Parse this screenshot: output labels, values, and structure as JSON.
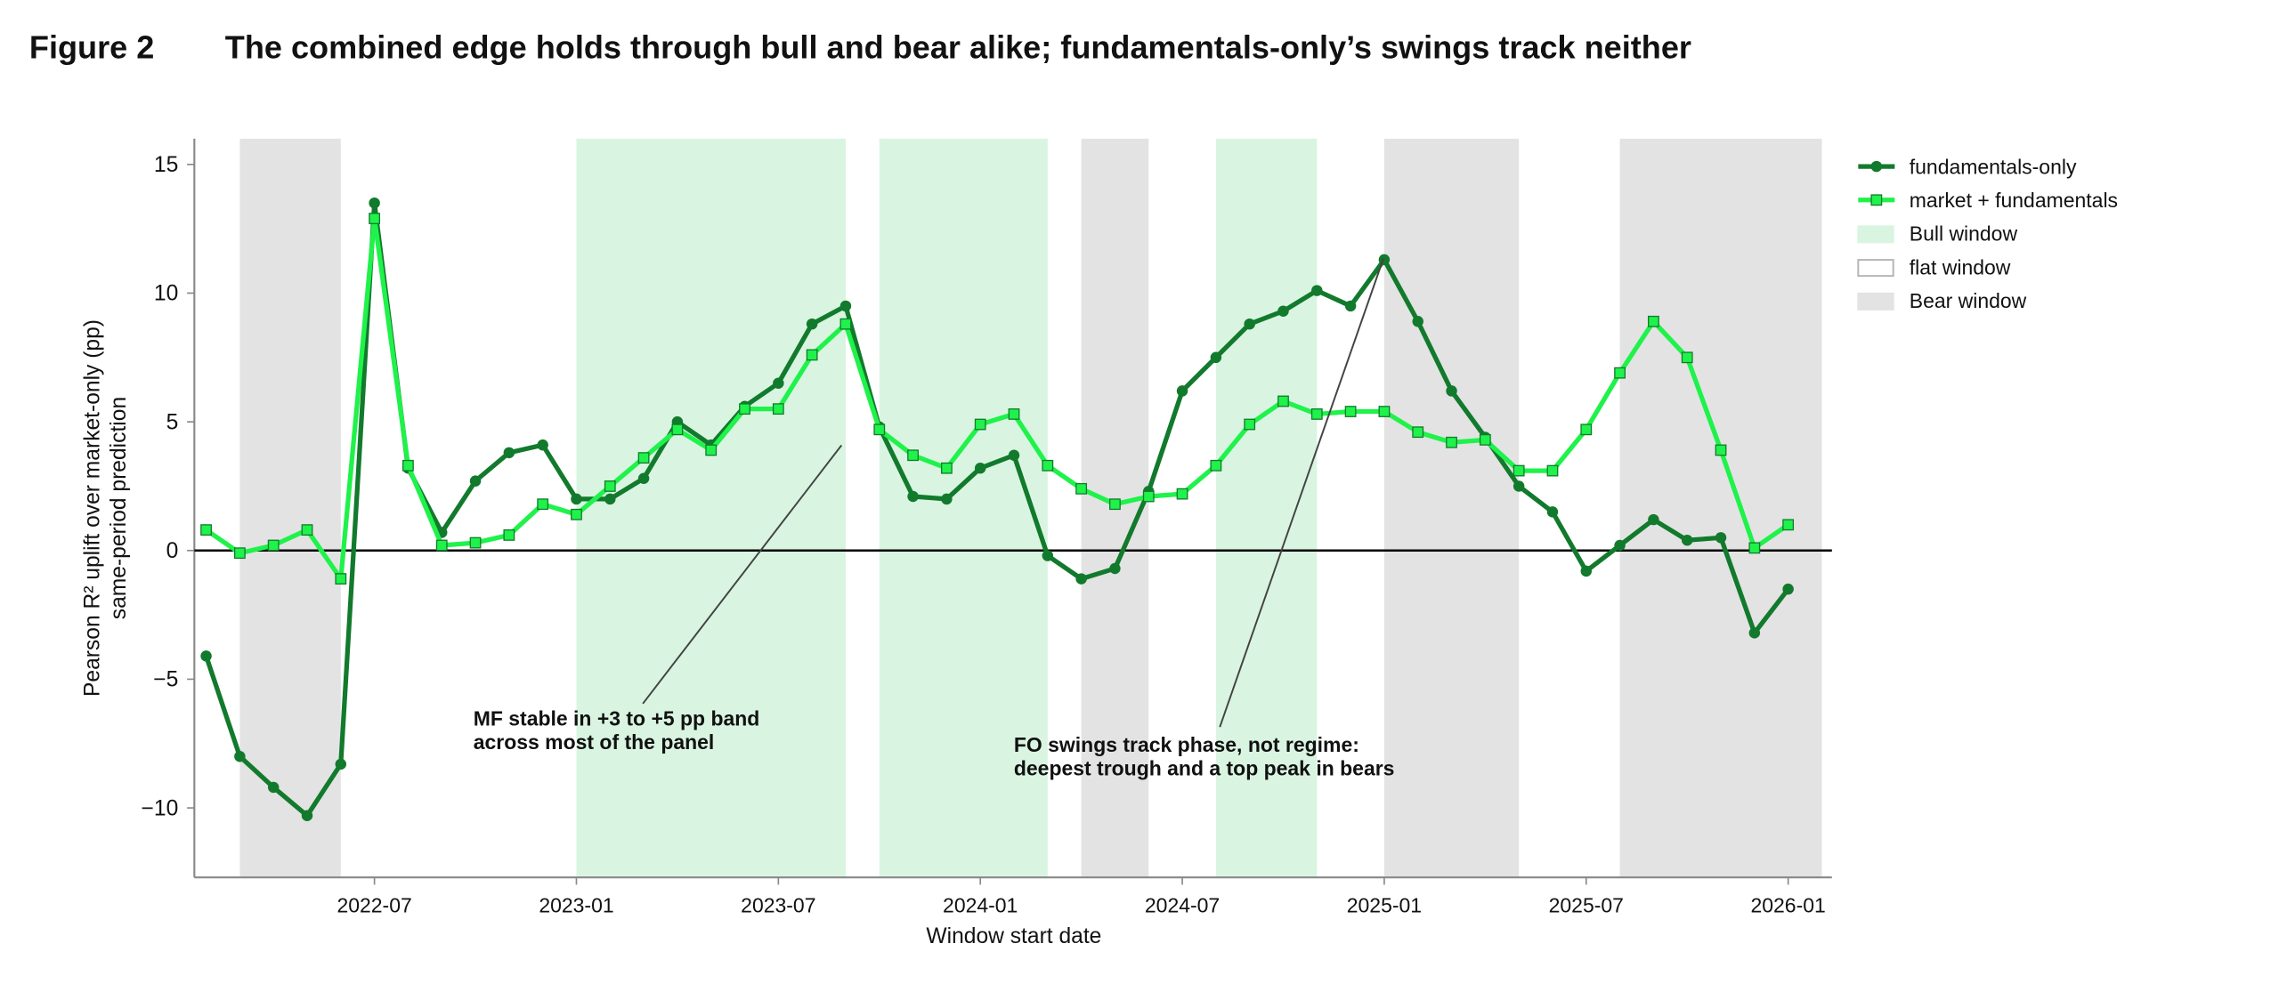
{
  "figure_label": "Figure 2",
  "chart_data": {
    "type": "line",
    "title": "The combined edge holds through bull and bear alike; fundamentals-only’s swings track neither",
    "xlabel": "Window start date",
    "ylabel": [
      "Pearson R² uplift over market-only (pp)",
      "same-period prediction"
    ],
    "x": [
      "2022-02",
      "2022-03",
      "2022-04",
      "2022-05",
      "2022-06",
      "2022-07",
      "2022-08",
      "2022-09",
      "2022-10",
      "2022-11",
      "2022-12",
      "2023-01",
      "2023-02",
      "2023-03",
      "2023-04",
      "2023-05",
      "2023-06",
      "2023-07",
      "2023-08",
      "2023-09",
      "2023-10",
      "2023-11",
      "2023-12",
      "2024-01",
      "2024-02",
      "2024-03",
      "2024-04",
      "2024-05",
      "2024-06",
      "2024-07",
      "2024-08",
      "2024-09",
      "2024-10",
      "2024-11",
      "2024-12",
      "2025-01",
      "2025-02",
      "2025-03",
      "2025-04",
      "2025-05",
      "2025-06",
      "2025-07",
      "2025-08",
      "2025-09",
      "2025-10",
      "2025-11",
      "2025-12",
      "2026-01"
    ],
    "xticks": [
      "2022-07",
      "2023-01",
      "2023-07",
      "2024-01",
      "2024-07",
      "2025-01",
      "2025-07",
      "2026-01"
    ],
    "ylim": [
      -12.7,
      16
    ],
    "yticks": [
      {
        "value": -10,
        "label": "−10"
      },
      {
        "value": -5,
        "label": "−5"
      },
      0,
      5,
      10,
      15
    ],
    "reference_line": 0,
    "grid": false,
    "legend": "upper right outside",
    "series": [
      {
        "name": "fundamentals-only",
        "color": "#127a2c",
        "marker": "circle",
        "values": [
          -4.1,
          -8.0,
          -9.2,
          -10.3,
          -8.3,
          13.5,
          3.2,
          0.7,
          2.7,
          3.8,
          4.1,
          2.0,
          2.0,
          2.8,
          5.0,
          4.1,
          5.6,
          6.5,
          8.8,
          9.5,
          4.8,
          2.1,
          2.0,
          3.2,
          3.7,
          -0.2,
          -1.1,
          -0.7,
          2.3,
          6.2,
          7.5,
          8.8,
          9.3,
          10.1,
          9.5,
          11.3,
          8.9,
          6.2,
          4.4,
          2.5,
          1.5,
          -0.8,
          0.2,
          1.2,
          0.4,
          0.5,
          -3.2,
          -1.5
        ]
      },
      {
        "name": "market + fundamentals",
        "color": "#1ff24a",
        "marker": "square",
        "values": [
          0.8,
          -0.1,
          0.2,
          0.8,
          -1.1,
          12.9,
          3.3,
          0.2,
          0.3,
          0.6,
          1.8,
          1.4,
          2.5,
          3.6,
          4.7,
          3.9,
          5.5,
          5.5,
          7.6,
          8.8,
          4.7,
          3.7,
          3.2,
          4.9,
          5.3,
          3.3,
          2.4,
          1.8,
          2.1,
          2.2,
          3.3,
          4.9,
          5.8,
          5.3,
          5.4,
          5.4,
          4.6,
          4.2,
          4.3,
          3.1,
          3.1,
          4.7,
          6.9,
          8.9,
          7.5,
          3.9,
          0.1,
          1.0
        ]
      }
    ],
    "regimes": [
      {
        "name": "Bull window",
        "color": "#d9f5e1",
        "border": "#d9f5e1"
      },
      {
        "name": "flat window",
        "color": "#ffffff",
        "border": "#b5b5b5"
      },
      {
        "name": "Bear window",
        "color": "#e3e3e3",
        "border": "#e3e3e3"
      }
    ],
    "windows": [
      {
        "regime": 2,
        "start": "2022-03",
        "end": "2022-06"
      },
      {
        "regime": 0,
        "start": "2023-01",
        "end": "2023-09"
      },
      {
        "regime": 0,
        "start": "2023-10",
        "end": "2024-03"
      },
      {
        "regime": 2,
        "start": "2024-04",
        "end": "2024-06"
      },
      {
        "regime": 0,
        "start": "2024-08",
        "end": "2024-11"
      },
      {
        "regime": 2,
        "start": "2025-01",
        "end": "2025-05"
      },
      {
        "regime": 2,
        "start": "2025-08",
        "end": "2026-02"
      }
    ],
    "annotations": [
      {
        "text": [
          "MF stable in +3 to +5 pp band",
          "across most of the panel"
        ]
      },
      {
        "text": [
          "FO swings track phase, not regime:",
          "deepest trough and a top peak in bears"
        ]
      }
    ]
  }
}
